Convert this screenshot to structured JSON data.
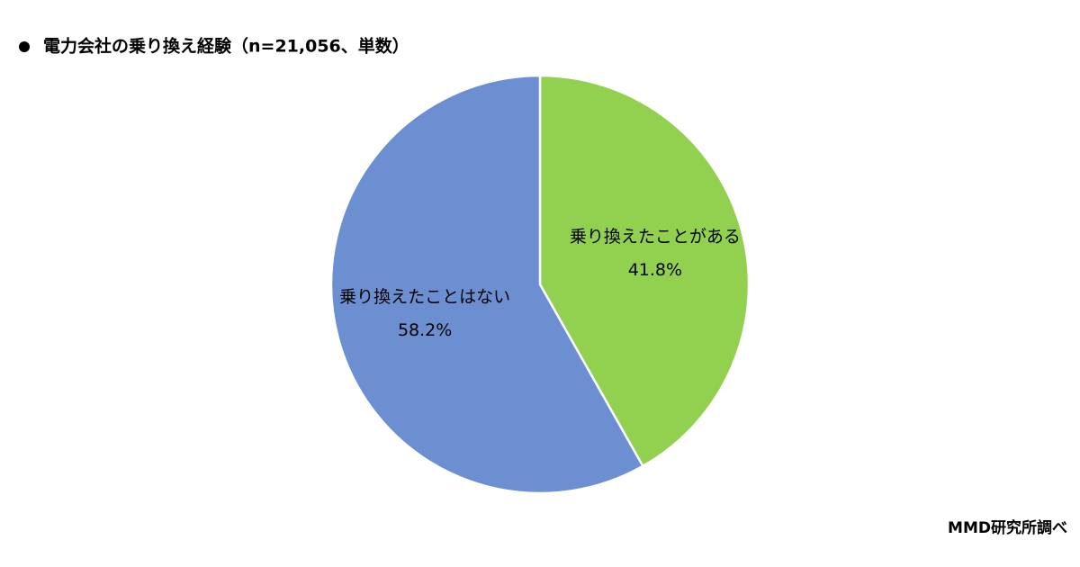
{
  "chart_data": {
    "type": "pie",
    "title": "電力会社の乗り換え経験（n=21,056、単数）",
    "categories": [
      "乗り換えたことがある",
      "乗り換えたことはない"
    ],
    "values": [
      41.8,
      58.2
    ],
    "value_labels": [
      "41.8%",
      "58.2%"
    ],
    "colors": [
      "#92d050",
      "#6b8fd0"
    ],
    "source": "MMD研究所調べ"
  }
}
